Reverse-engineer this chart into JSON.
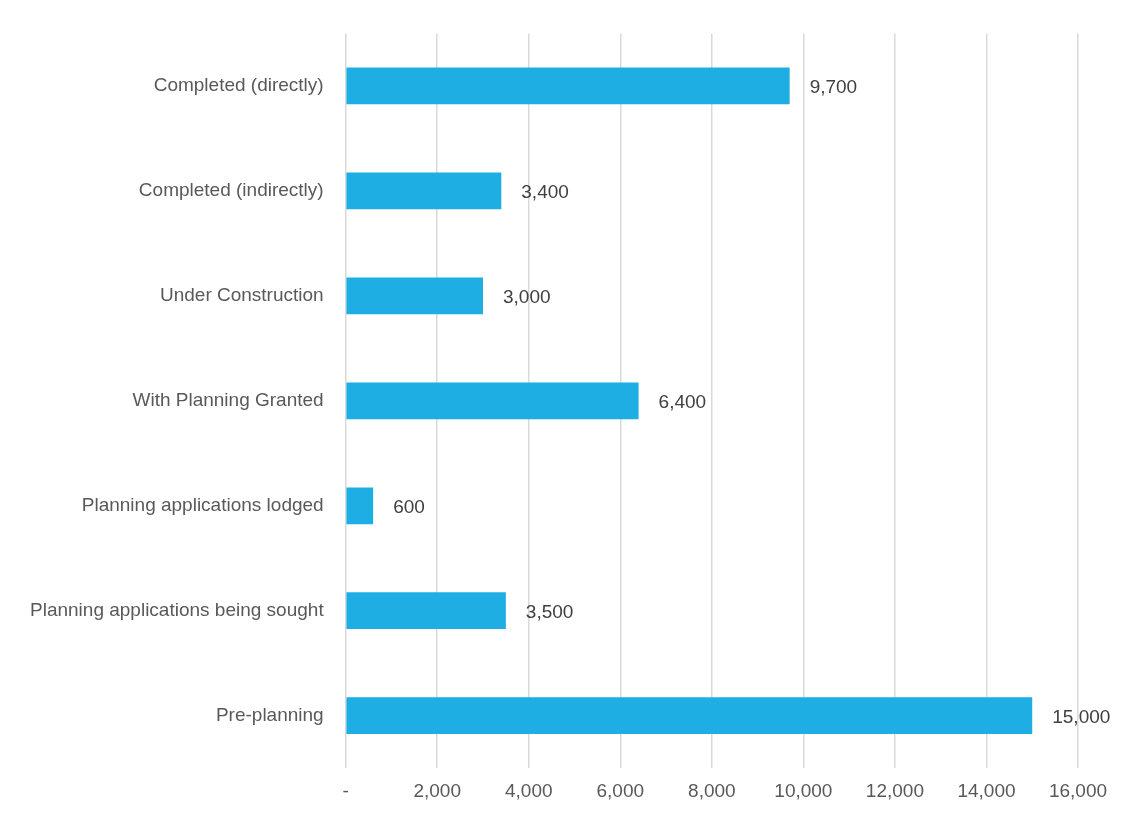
{
  "chart_data": {
    "type": "bar",
    "orientation": "horizontal",
    "categories": [
      "Completed (directly)",
      "Completed (indirectly)",
      "Under Construction",
      "With Planning Granted",
      "Planning applications lodged",
      "Planning applications being sought",
      "Pre-planning"
    ],
    "values": [
      9700,
      3400,
      3000,
      6400,
      600,
      3500,
      15000
    ],
    "value_labels": [
      "9,700",
      "3,400",
      "3,000",
      "6,400",
      "600",
      "3,500",
      "15,000"
    ],
    "color": "#1eaee4",
    "xlim": [
      0,
      16000
    ],
    "xticks": [
      {
        "value": 0,
        "label": "-"
      },
      {
        "value": 2000,
        "label": "2,000"
      },
      {
        "value": 4000,
        "label": "4,000"
      },
      {
        "value": 6000,
        "label": "6,000"
      },
      {
        "value": 8000,
        "label": "8,000"
      },
      {
        "value": 10000,
        "label": "10,000"
      },
      {
        "value": 12000,
        "label": "12,000"
      },
      {
        "value": 14000,
        "label": "14,000"
      },
      {
        "value": 16000,
        "label": "16,000"
      }
    ],
    "grid": "x",
    "legend": false
  }
}
